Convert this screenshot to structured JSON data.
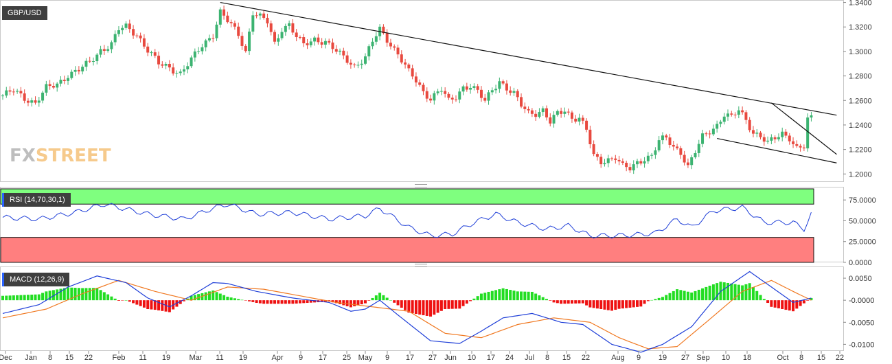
{
  "panels": {
    "price": {
      "label": "GBP/USD",
      "ticks": [
        "1.3400",
        "1.3200",
        "1.3000",
        "1.2800",
        "1.2600",
        "1.2400",
        "1.2200",
        "1.2000"
      ]
    },
    "rsi": {
      "label": "RSI (14,70,30,1)",
      "ticks": [
        "75.0000",
        "50.0000",
        "25.0000",
        "0.0000"
      ]
    },
    "macd": {
      "label": "MACD (12,26,9)",
      "ticks": [
        "0.0050",
        "-0.0000",
        "-0.0050",
        "-0.0100"
      ]
    }
  },
  "logo": {
    "fx": "FX",
    "street": "STREET"
  },
  "x_labels": [
    "Dec",
    "Jan",
    "8",
    "15",
    "22",
    "Feb",
    "11",
    "19",
    "Mar",
    "11",
    "19",
    "Apr",
    "9",
    "17",
    "25",
    "May",
    "9",
    "17",
    "27",
    "Jun",
    "10",
    "17",
    "24",
    "Jul",
    "8",
    "15",
    "22",
    "Aug",
    "9",
    "19",
    "27",
    "Sep",
    "10",
    "18",
    "Oct",
    "8",
    "15",
    "22"
  ],
  "colors": {
    "up": "#3cb371",
    "down": "#e8493f",
    "rsi_line": "#1f3fd8",
    "macd_line": "#1f3fd8",
    "signal_line": "#f07820",
    "hist_up": "#22dd22",
    "hist_down": "#ee1111",
    "overbought": "#7fff7f",
    "oversold": "#ff7f7f"
  },
  "chart_data": {
    "type": "candlestick",
    "title": "GBP/USD",
    "ylim_price": [
      1.194,
      1.342
    ],
    "rsi_levels": [
      70,
      30
    ],
    "rsi_ylim": [
      0,
      90
    ],
    "macd_ylim": [
      -0.0115,
      0.0075
    ],
    "price_keypoints": [
      [
        0,
        1.264
      ],
      [
        3,
        1.268
      ],
      [
        6,
        1.262
      ],
      [
        9,
        1.258
      ],
      [
        12,
        1.27
      ],
      [
        15,
        1.273
      ],
      [
        18,
        1.281
      ],
      [
        21,
        1.285
      ],
      [
        24,
        1.291
      ],
      [
        27,
        1.301
      ],
      [
        30,
        1.306
      ],
      [
        32,
        1.318
      ],
      [
        34,
        1.32
      ],
      [
        37,
        1.314
      ],
      [
        40,
        1.301
      ],
      [
        43,
        1.29
      ],
      [
        46,
        1.287
      ],
      [
        49,
        1.282
      ],
      [
        52,
        1.293
      ],
      [
        55,
        1.305
      ],
      [
        58,
        1.314
      ],
      [
        60,
        1.332
      ],
      [
        62,
        1.325
      ],
      [
        65,
        1.314
      ],
      [
        67,
        1.3
      ],
      [
        69,
        1.332
      ],
      [
        71,
        1.328
      ],
      [
        73,
        1.324
      ],
      [
        75,
        1.306
      ],
      [
        77,
        1.319
      ],
      [
        79,
        1.322
      ],
      [
        81,
        1.312
      ],
      [
        83,
        1.305
      ],
      [
        86,
        1.31
      ],
      [
        89,
        1.308
      ],
      [
        92,
        1.3
      ],
      [
        95,
        1.293
      ],
      [
        97,
        1.288
      ],
      [
        100,
        1.295
      ],
      [
        102,
        1.308
      ],
      [
        104,
        1.318
      ],
      [
        106,
        1.31
      ],
      [
        109,
        1.298
      ],
      [
        112,
        1.283
      ],
      [
        114,
        1.276
      ],
      [
        116,
        1.267
      ],
      [
        118,
        1.262
      ],
      [
        121,
        1.269
      ],
      [
        123,
        1.259
      ],
      [
        125,
        1.263
      ],
      [
        127,
        1.271
      ],
      [
        129,
        1.272
      ],
      [
        131,
        1.267
      ],
      [
        133,
        1.259
      ],
      [
        135,
        1.269
      ],
      [
        137,
        1.276
      ],
      [
        139,
        1.27
      ],
      [
        141,
        1.265
      ],
      [
        143,
        1.256
      ],
      [
        145,
        1.25
      ],
      [
        147,
        1.25
      ],
      [
        149,
        1.252
      ],
      [
        151,
        1.242
      ],
      [
        153,
        1.249
      ],
      [
        155,
        1.252
      ],
      [
        157,
        1.246
      ],
      [
        159,
        1.246
      ],
      [
        161,
        1.236
      ],
      [
        163,
        1.214
      ],
      [
        165,
        1.21
      ],
      [
        167,
        1.212
      ],
      [
        169,
        1.214
      ],
      [
        171,
        1.206
      ],
      [
        173,
        1.204
      ],
      [
        175,
        1.209
      ],
      [
        177,
        1.213
      ],
      [
        179,
        1.215
      ],
      [
        181,
        1.227
      ],
      [
        183,
        1.229
      ],
      [
        185,
        1.222
      ],
      [
        187,
        1.218
      ],
      [
        189,
        1.206
      ],
      [
        191,
        1.218
      ],
      [
        193,
        1.23
      ],
      [
        195,
        1.235
      ],
      [
        197,
        1.24
      ],
      [
        199,
        1.249
      ],
      [
        201,
        1.246
      ],
      [
        203,
        1.252
      ],
      [
        205,
        1.244
      ],
      [
        207,
        1.234
      ],
      [
        209,
        1.231
      ],
      [
        211,
        1.225
      ],
      [
        213,
        1.229
      ],
      [
        215,
        1.233
      ],
      [
        217,
        1.23
      ],
      [
        219,
        1.221
      ],
      [
        221,
        1.222
      ],
      [
        222,
        1.244
      ],
      [
        223,
        1.245
      ]
    ],
    "rsi_keypoints": [
      [
        0,
        54
      ],
      [
        10,
        52
      ],
      [
        20,
        60
      ],
      [
        28,
        70
      ],
      [
        40,
        58
      ],
      [
        50,
        52
      ],
      [
        58,
        65
      ],
      [
        62,
        70
      ],
      [
        70,
        58
      ],
      [
        80,
        60
      ],
      [
        90,
        52
      ],
      [
        100,
        56
      ],
      [
        104,
        65
      ],
      [
        112,
        42
      ],
      [
        118,
        32
      ],
      [
        124,
        34
      ],
      [
        130,
        48
      ],
      [
        136,
        58
      ],
      [
        142,
        48
      ],
      [
        150,
        40
      ],
      [
        156,
        44
      ],
      [
        162,
        32
      ],
      [
        168,
        32
      ],
      [
        174,
        33
      ],
      [
        180,
        35
      ],
      [
        186,
        52
      ],
      [
        190,
        42
      ],
      [
        196,
        62
      ],
      [
        204,
        66
      ],
      [
        210,
        48
      ],
      [
        218,
        48
      ],
      [
        221,
        40
      ],
      [
        223,
        58
      ]
    ],
    "macd_keypoints": [
      [
        0,
        -0.003
      ],
      [
        10,
        -0.001
      ],
      [
        18,
        0.003
      ],
      [
        26,
        0.0055
      ],
      [
        34,
        0.004
      ],
      [
        40,
        0.0005
      ],
      [
        46,
        -0.0015
      ],
      [
        52,
        0.001
      ],
      [
        58,
        0.004
      ],
      [
        62,
        0.0038
      ],
      [
        70,
        0.002
      ],
      [
        80,
        0.0005
      ],
      [
        90,
        -0.0005
      ],
      [
        96,
        -0.0025
      ],
      [
        100,
        -0.002
      ],
      [
        104,
        0.0
      ],
      [
        110,
        -0.004
      ],
      [
        118,
        -0.0092
      ],
      [
        126,
        -0.0098
      ],
      [
        132,
        -0.007
      ],
      [
        138,
        -0.004
      ],
      [
        146,
        -0.003
      ],
      [
        154,
        -0.005
      ],
      [
        160,
        -0.0055
      ],
      [
        168,
        -0.01
      ],
      [
        176,
        -0.0118
      ],
      [
        182,
        -0.01
      ],
      [
        190,
        -0.006
      ],
      [
        198,
        0.002
      ],
      [
        206,
        0.0065
      ],
      [
        212,
        0.003
      ],
      [
        218,
        -0.0005
      ],
      [
        223,
        0.0005
      ]
    ],
    "signal_keypoints": [
      [
        0,
        -0.004
      ],
      [
        12,
        -0.002
      ],
      [
        22,
        0.0015
      ],
      [
        32,
        0.0045
      ],
      [
        42,
        0.002
      ],
      [
        52,
        0.0
      ],
      [
        62,
        0.003
      ],
      [
        72,
        0.0025
      ],
      [
        82,
        0.001
      ],
      [
        92,
        -0.0005
      ],
      [
        102,
        -0.0015
      ],
      [
        112,
        -0.0025
      ],
      [
        122,
        -0.0075
      ],
      [
        132,
        -0.0085
      ],
      [
        142,
        -0.0055
      ],
      [
        152,
        -0.004
      ],
      [
        162,
        -0.005
      ],
      [
        170,
        -0.0085
      ],
      [
        178,
        -0.011
      ],
      [
        186,
        -0.0105
      ],
      [
        194,
        -0.005
      ],
      [
        204,
        0.002
      ],
      [
        212,
        0.0045
      ],
      [
        218,
        0.002
      ],
      [
        223,
        0.0
      ]
    ],
    "trendlines": [
      {
        "from": [
          60,
          1.34
        ],
        "to": [
          230,
          1.248
        ]
      },
      {
        "from": [
          212,
          1.258
        ],
        "to": [
          230,
          1.216
        ]
      },
      {
        "from": [
          197,
          1.229
        ],
        "to": [
          230,
          1.209
        ]
      }
    ]
  }
}
